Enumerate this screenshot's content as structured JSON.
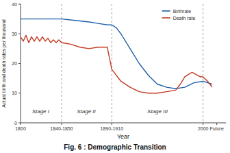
{
  "chart_data": {
    "type": "line",
    "title": "Fig. 6 : Demographic Transition",
    "x_label": "Year",
    "y_label": "Actual birth and death rates per thousand",
    "xlim": [
      1800,
      2025
    ],
    "ylim": [
      0,
      40
    ],
    "xticks": [
      1800,
      {
        "value": 1845,
        "label": "1840-1850"
      },
      {
        "value": 1900,
        "label": "1890-1910"
      },
      2000,
      {
        "value": 2015,
        "label": "Future"
      }
    ],
    "yticks": [
      0,
      10,
      20,
      30,
      40
    ],
    "grid": false,
    "legend": "upper right",
    "vlines": [
      1845,
      1900,
      2000
    ],
    "annotations": [
      {
        "text": "Stage I",
        "x": 1822,
        "y": 3
      },
      {
        "text": "Stage II",
        "x": 1872,
        "y": 3
      },
      {
        "text": "Stage III",
        "x": 1950,
        "y": 3
      }
    ],
    "series": [
      {
        "name": "Birthrate",
        "color": "#1f5fa8",
        "x": [
          1800,
          1805,
          1810,
          1815,
          1820,
          1825,
          1830,
          1835,
          1840,
          1845,
          1860,
          1875,
          1885,
          1895,
          1900,
          1905,
          1910,
          1920,
          1930,
          1940,
          1950,
          1960,
          1970,
          1980,
          1990,
          2000,
          2010
        ],
        "values": [
          35,
          35,
          35,
          35,
          35,
          35,
          35,
          35,
          35,
          35,
          34.5,
          34,
          33.5,
          33,
          33,
          32,
          30,
          25,
          20,
          16,
          13,
          12,
          11.5,
          12,
          13.5,
          14,
          13
        ]
      },
      {
        "name": "Death rate",
        "color": "#c23b22",
        "x": [
          1800,
          1803,
          1806,
          1809,
          1812,
          1815,
          1818,
          1821,
          1824,
          1827,
          1830,
          1833,
          1836,
          1839,
          1842,
          1845,
          1855,
          1865,
          1875,
          1885,
          1895,
          1900,
          1910,
          1920,
          1930,
          1940,
          1950,
          1960,
          1970,
          1975,
          1980,
          1985,
          1988,
          1991,
          1994,
          1997,
          2000,
          2005,
          2010
        ],
        "values": [
          29,
          27.5,
          29.5,
          27,
          29,
          27.5,
          29,
          27.5,
          29,
          27.5,
          28.5,
          27,
          28,
          27,
          28,
          27,
          26.5,
          25.5,
          25,
          25.5,
          25.5,
          18,
          14,
          12,
          10.5,
          10,
          10,
          10.5,
          11,
          13,
          15.5,
          16.5,
          17,
          16.5,
          16,
          15.5,
          15.5,
          14,
          12
        ]
      }
    ]
  }
}
